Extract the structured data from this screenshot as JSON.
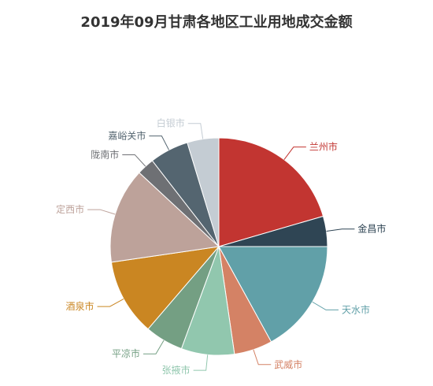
{
  "chart_data": {
    "type": "pie",
    "title": "2019年09月甘肃各地区工业用地成交金额",
    "slices": [
      {
        "name": "兰州市",
        "value": 20.5,
        "color": "#c23531"
      },
      {
        "name": "金昌市",
        "value": 4.5,
        "color": "#2f4554"
      },
      {
        "name": "天水市",
        "value": 17.0,
        "color": "#61a0a8"
      },
      {
        "name": "武威市",
        "value": 5.7,
        "color": "#d48265"
      },
      {
        "name": "张掖市",
        "value": 7.9,
        "color": "#91c7ae"
      },
      {
        "name": "平凉市",
        "value": 5.7,
        "color": "#749f83"
      },
      {
        "name": "酒泉市",
        "value": 11.4,
        "color": "#ca8622"
      },
      {
        "name": "定西市",
        "value": 14.2,
        "color": "#bda29a"
      },
      {
        "name": "陇南市",
        "value": 2.6,
        "color": "#6e7074"
      },
      {
        "name": "嘉峪关市",
        "value": 5.8,
        "color": "#546570"
      },
      {
        "name": "白银市",
        "value": 4.7,
        "color": "#c4ccd3"
      }
    ]
  }
}
